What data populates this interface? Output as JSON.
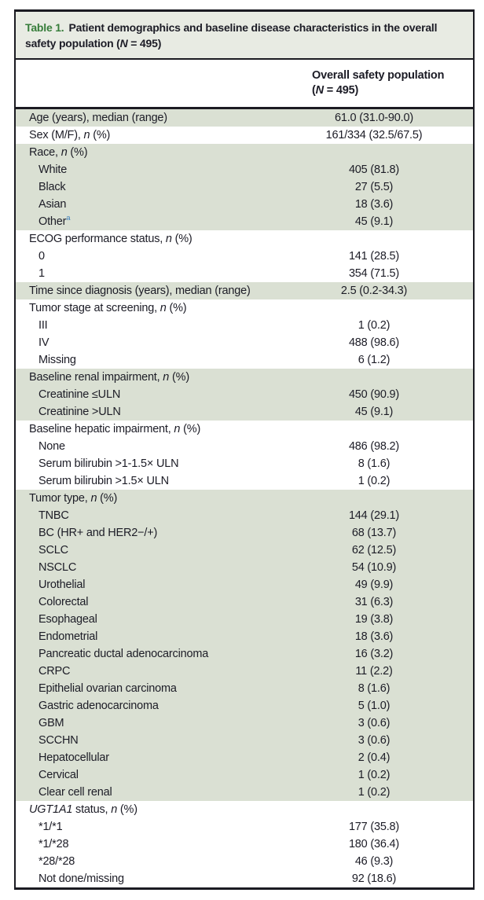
{
  "colors": {
    "border": "#1b1b22",
    "text": "#1c1c26",
    "row_shade": "#dae0d3",
    "title_bg": "#e8ebe3",
    "title_accent_green": "#367d3a",
    "footnote_marker_blue": "#3b7ebc"
  },
  "title": {
    "label": "Table 1.",
    "body": "Patient demographics and baseline disease characteristics in the overall safety population (",
    "n_italic": "N",
    "tail": " = 495)"
  },
  "column_header": {
    "line1": "Overall safety population",
    "open_paren": "(",
    "n_italic": "N",
    "tail": " = 495)"
  },
  "table": {
    "rows": [
      {
        "parts": [
          {
            "v": "Age (years), median (range)"
          }
        ],
        "value": "61.0 (31.0-90.0)",
        "indent": 0,
        "shade": true
      },
      {
        "parts": [
          {
            "v": "Sex (M/F), "
          },
          {
            "v": "n",
            "i": true
          },
          {
            "v": " (%)"
          }
        ],
        "value": "161/334 (32.5/67.5)",
        "indent": 0,
        "shade": false
      },
      {
        "parts": [
          {
            "v": "Race, "
          },
          {
            "v": "n",
            "i": true
          },
          {
            "v": " (%)"
          }
        ],
        "value": "",
        "indent": 0,
        "shade": true
      },
      {
        "parts": [
          {
            "v": "White"
          }
        ],
        "value": "405 (81.8)",
        "indent": 1,
        "shade": true
      },
      {
        "parts": [
          {
            "v": "Black"
          }
        ],
        "value": "27 (5.5)",
        "indent": 1,
        "shade": true
      },
      {
        "parts": [
          {
            "v": "Asian"
          }
        ],
        "value": "18 (3.6)",
        "indent": 1,
        "shade": true
      },
      {
        "parts": [
          {
            "v": "Other"
          },
          {
            "v": "a",
            "sup": true
          }
        ],
        "value": "45 (9.1)",
        "indent": 1,
        "shade": true
      },
      {
        "parts": [
          {
            "v": "ECOG performance status, "
          },
          {
            "v": "n",
            "i": true
          },
          {
            "v": " (%)"
          }
        ],
        "value": "",
        "indent": 0,
        "shade": false
      },
      {
        "parts": [
          {
            "v": "0"
          }
        ],
        "value": "141 (28.5)",
        "indent": 1,
        "shade": false
      },
      {
        "parts": [
          {
            "v": "1"
          }
        ],
        "value": "354 (71.5)",
        "indent": 1,
        "shade": false
      },
      {
        "parts": [
          {
            "v": "Time since diagnosis (years), median (range)"
          }
        ],
        "value": "2.5 (0.2-34.3)",
        "indent": 0,
        "shade": true
      },
      {
        "parts": [
          {
            "v": "Tumor stage at screening, "
          },
          {
            "v": "n",
            "i": true
          },
          {
            "v": " (%)"
          }
        ],
        "value": "",
        "indent": 0,
        "shade": false
      },
      {
        "parts": [
          {
            "v": "III"
          }
        ],
        "value": "1 (0.2)",
        "indent": 1,
        "shade": false
      },
      {
        "parts": [
          {
            "v": "IV"
          }
        ],
        "value": "488 (98.6)",
        "indent": 1,
        "shade": false
      },
      {
        "parts": [
          {
            "v": "Missing"
          }
        ],
        "value": "6 (1.2)",
        "indent": 1,
        "shade": false
      },
      {
        "parts": [
          {
            "v": "Baseline renal impairment, "
          },
          {
            "v": "n",
            "i": true
          },
          {
            "v": " (%)"
          }
        ],
        "value": "",
        "indent": 0,
        "shade": true
      },
      {
        "parts": [
          {
            "v": "Creatinine ≤ULN"
          }
        ],
        "value": "450 (90.9)",
        "indent": 1,
        "shade": true
      },
      {
        "parts": [
          {
            "v": "Creatinine >ULN"
          }
        ],
        "value": "45 (9.1)",
        "indent": 1,
        "shade": true
      },
      {
        "parts": [
          {
            "v": "Baseline hepatic impairment, "
          },
          {
            "v": "n",
            "i": true
          },
          {
            "v": " (%)"
          }
        ],
        "value": "",
        "indent": 0,
        "shade": false
      },
      {
        "parts": [
          {
            "v": "None"
          }
        ],
        "value": "486 (98.2)",
        "indent": 1,
        "shade": false
      },
      {
        "parts": [
          {
            "v": "Serum bilirubin >1-1.5× ULN"
          }
        ],
        "value": "8 (1.6)",
        "indent": 1,
        "shade": false
      },
      {
        "parts": [
          {
            "v": "Serum bilirubin >1.5× ULN"
          }
        ],
        "value": "1 (0.2)",
        "indent": 1,
        "shade": false
      },
      {
        "parts": [
          {
            "v": "Tumor type, "
          },
          {
            "v": "n",
            "i": true
          },
          {
            "v": " (%)"
          }
        ],
        "value": "",
        "indent": 0,
        "shade": true
      },
      {
        "parts": [
          {
            "v": "TNBC"
          }
        ],
        "value": "144 (29.1)",
        "indent": 1,
        "shade": true
      },
      {
        "parts": [
          {
            "v": "BC (HR+ and HER2−/+)"
          }
        ],
        "value": "68 (13.7)",
        "indent": 1,
        "shade": true
      },
      {
        "parts": [
          {
            "v": "SCLC"
          }
        ],
        "value": "62 (12.5)",
        "indent": 1,
        "shade": true
      },
      {
        "parts": [
          {
            "v": "NSCLC"
          }
        ],
        "value": "54 (10.9)",
        "indent": 1,
        "shade": true
      },
      {
        "parts": [
          {
            "v": "Urothelial"
          }
        ],
        "value": "49 (9.9)",
        "indent": 1,
        "shade": true
      },
      {
        "parts": [
          {
            "v": "Colorectal"
          }
        ],
        "value": "31 (6.3)",
        "indent": 1,
        "shade": true
      },
      {
        "parts": [
          {
            "v": "Esophageal"
          }
        ],
        "value": "19 (3.8)",
        "indent": 1,
        "shade": true
      },
      {
        "parts": [
          {
            "v": "Endometrial"
          }
        ],
        "value": "18 (3.6)",
        "indent": 1,
        "shade": true
      },
      {
        "parts": [
          {
            "v": "Pancreatic ductal adenocarcinoma"
          }
        ],
        "value": "16 (3.2)",
        "indent": 1,
        "shade": true
      },
      {
        "parts": [
          {
            "v": "CRPC"
          }
        ],
        "value": "11 (2.2)",
        "indent": 1,
        "shade": true
      },
      {
        "parts": [
          {
            "v": "Epithelial ovarian carcinoma"
          }
        ],
        "value": "8 (1.6)",
        "indent": 1,
        "shade": true
      },
      {
        "parts": [
          {
            "v": "Gastric adenocarcinoma"
          }
        ],
        "value": "5 (1.0)",
        "indent": 1,
        "shade": true
      },
      {
        "parts": [
          {
            "v": "GBM"
          }
        ],
        "value": "3 (0.6)",
        "indent": 1,
        "shade": true
      },
      {
        "parts": [
          {
            "v": "SCCHN"
          }
        ],
        "value": "3 (0.6)",
        "indent": 1,
        "shade": true
      },
      {
        "parts": [
          {
            "v": "Hepatocellular"
          }
        ],
        "value": "2 (0.4)",
        "indent": 1,
        "shade": true
      },
      {
        "parts": [
          {
            "v": "Cervical"
          }
        ],
        "value": "1 (0.2)",
        "indent": 1,
        "shade": true
      },
      {
        "parts": [
          {
            "v": "Clear cell renal"
          }
        ],
        "value": "1 (0.2)",
        "indent": 1,
        "shade": true
      },
      {
        "parts": [
          {
            "v": "UGT1A1",
            "i": true
          },
          {
            "v": " status, "
          },
          {
            "v": "n",
            "i": true
          },
          {
            "v": " (%)"
          }
        ],
        "value": "",
        "indent": 0,
        "shade": false
      },
      {
        "parts": [
          {
            "v": "*1/*1"
          }
        ],
        "value": "177 (35.8)",
        "indent": 1,
        "shade": false
      },
      {
        "parts": [
          {
            "v": "*1/*28"
          }
        ],
        "value": "180 (36.4)",
        "indent": 1,
        "shade": false
      },
      {
        "parts": [
          {
            "v": "*28/*28"
          }
        ],
        "value": "46 (9.3)",
        "indent": 1,
        "shade": false
      },
      {
        "parts": [
          {
            "v": "Not done/missing"
          }
        ],
        "value": "92 (18.6)",
        "indent": 1,
        "shade": false
      }
    ]
  }
}
